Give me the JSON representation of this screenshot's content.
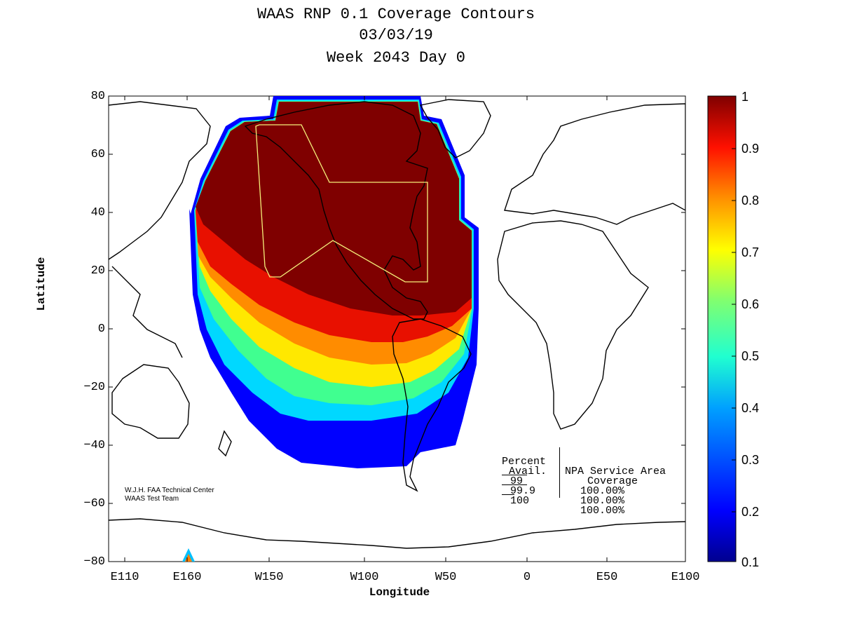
{
  "titles": [
    "WAAS RNP 0.1 Coverage Contours",
    "03/03/19",
    "Week 2043 Day 0"
  ],
  "axes": {
    "xlabel": "Longitude",
    "ylabel": "Latitude",
    "yticks": [
      "80",
      "60",
      "40",
      "20",
      "0",
      "−20",
      "−40",
      "−60",
      "−80"
    ],
    "xticks": [
      "E110",
      "E160",
      "W150",
      "W100",
      "W50",
      "0",
      "E50",
      "E100"
    ]
  },
  "colorbar": {
    "ticks": [
      "1",
      "0.9",
      "0.8",
      "0.7",
      "0.6",
      "0.5",
      "0.4",
      "0.3",
      "0.2",
      "0.1"
    ],
    "range": [
      0.1,
      1
    ]
  },
  "credit": [
    "W.J.H. FAA Technical Center",
    "WAAS Test Team"
  ],
  "stats": {
    "header1": [
      "Percent",
      "Avail."
    ],
    "header2": [
      "NPA Service Area",
      "Coverage"
    ],
    "rows": [
      {
        "avail": "99",
        "coverage": "100.00%"
      },
      {
        "avail": "99.9",
        "coverage": "100.00%"
      },
      {
        "avail": "100",
        "coverage": "100.00%"
      }
    ]
  },
  "colors": {
    "max": "#7f0000",
    "high": "#ff2000",
    "mid_high": "#ff9000",
    "mid": "#ffee00",
    "mid_low": "#30ffc0",
    "low_mid": "#00a8ff",
    "low": "#0030ff",
    "min": "#00008f",
    "service_area": "#f5f07a"
  }
}
